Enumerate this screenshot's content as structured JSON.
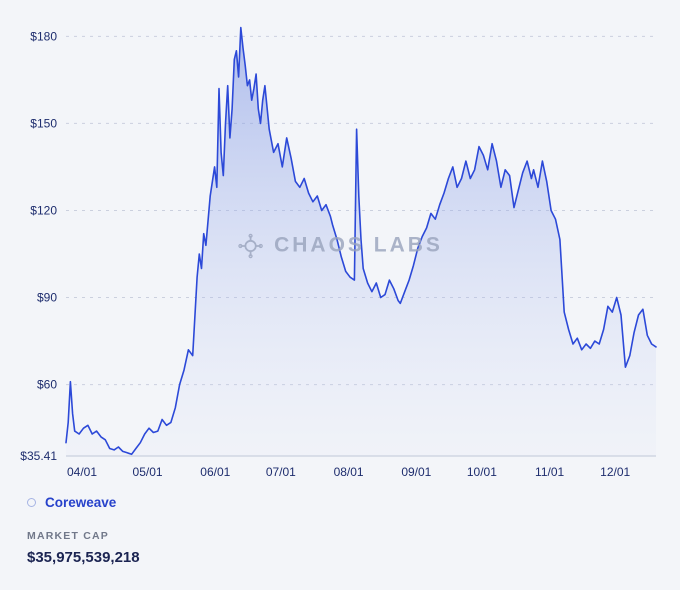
{
  "watermark": {
    "text": "CHAOS LABS"
  },
  "legend": {
    "series_name": "Coreweave"
  },
  "stats": {
    "market_cap_label": "MARKET CAP",
    "market_cap_value": "$35,975,539,218"
  },
  "chart_data": {
    "type": "area",
    "title": "",
    "xlabel": "",
    "ylabel": "",
    "ylim": [
      35.41,
      187
    ],
    "x_total_days": 270,
    "grid": "dashed-horizontal",
    "legend_position": "bottom-left",
    "baseline_label": "$35.41",
    "y_ticks": [
      {
        "label": "$180",
        "value": 180
      },
      {
        "label": "$150",
        "value": 150
      },
      {
        "label": "$120",
        "value": 120
      },
      {
        "label": "$90",
        "value": 90
      },
      {
        "label": "$60",
        "value": 60
      }
    ],
    "x_ticks": [
      {
        "label": "04/01",
        "t": 0
      },
      {
        "label": "05/01",
        "t": 30
      },
      {
        "label": "06/01",
        "t": 61
      },
      {
        "label": "07/01",
        "t": 91
      },
      {
        "label": "08/01",
        "t": 122
      },
      {
        "label": "09/01",
        "t": 153
      },
      {
        "label": "10/01",
        "t": 183
      },
      {
        "label": "11/01",
        "t": 214
      },
      {
        "label": "12/01",
        "t": 244
      }
    ],
    "series": [
      {
        "name": "Coreweave",
        "points": [
          [
            0,
            40
          ],
          [
            1,
            47
          ],
          [
            2,
            61
          ],
          [
            3,
            50
          ],
          [
            4,
            44
          ],
          [
            6,
            43
          ],
          [
            8,
            45
          ],
          [
            10,
            46
          ],
          [
            12,
            43
          ],
          [
            14,
            44
          ],
          [
            16,
            42
          ],
          [
            18,
            41
          ],
          [
            20,
            38
          ],
          [
            22,
            37.5
          ],
          [
            24,
            38.5
          ],
          [
            26,
            37
          ],
          [
            28,
            36.5
          ],
          [
            30,
            36
          ],
          [
            32,
            38
          ],
          [
            34,
            40
          ],
          [
            36,
            43
          ],
          [
            38,
            45
          ],
          [
            40,
            43.5
          ],
          [
            42,
            44
          ],
          [
            44,
            48
          ],
          [
            46,
            46
          ],
          [
            48,
            47
          ],
          [
            50,
            52
          ],
          [
            52,
            60
          ],
          [
            54,
            65
          ],
          [
            56,
            72
          ],
          [
            58,
            70
          ],
          [
            60,
            97
          ],
          [
            61,
            105
          ],
          [
            62,
            100
          ],
          [
            63,
            112
          ],
          [
            64,
            108
          ],
          [
            66,
            125
          ],
          [
            68,
            135
          ],
          [
            69,
            128
          ],
          [
            70,
            162
          ],
          [
            71,
            140
          ],
          [
            72,
            132
          ],
          [
            73,
            150
          ],
          [
            74,
            163
          ],
          [
            75,
            145
          ],
          [
            76,
            155
          ],
          [
            77,
            172
          ],
          [
            78,
            175
          ],
          [
            79,
            166
          ],
          [
            80,
            183
          ],
          [
            81,
            176
          ],
          [
            82,
            170
          ],
          [
            83,
            163
          ],
          [
            84,
            165
          ],
          [
            85,
            158
          ],
          [
            86,
            162
          ],
          [
            87,
            167
          ],
          [
            88,
            155
          ],
          [
            89,
            150
          ],
          [
            90,
            158
          ],
          [
            91,
            163
          ],
          [
            93,
            148
          ],
          [
            95,
            140
          ],
          [
            97,
            143
          ],
          [
            99,
            135
          ],
          [
            101,
            145
          ],
          [
            103,
            138
          ],
          [
            105,
            130
          ],
          [
            107,
            128
          ],
          [
            109,
            131
          ],
          [
            111,
            126
          ],
          [
            113,
            123
          ],
          [
            115,
            125
          ],
          [
            117,
            120
          ],
          [
            119,
            122
          ],
          [
            121,
            118
          ],
          [
            122,
            115
          ],
          [
            124,
            110
          ],
          [
            126,
            104
          ],
          [
            128,
            99
          ],
          [
            130,
            97
          ],
          [
            132,
            96
          ],
          [
            133,
            148
          ],
          [
            134,
            125
          ],
          [
            135,
            110
          ],
          [
            136,
            100
          ],
          [
            138,
            95
          ],
          [
            140,
            92
          ],
          [
            142,
            95
          ],
          [
            144,
            90
          ],
          [
            146,
            91
          ],
          [
            148,
            96
          ],
          [
            150,
            93
          ],
          [
            152,
            89
          ],
          [
            153,
            88
          ],
          [
            155,
            92
          ],
          [
            157,
            96
          ],
          [
            159,
            101
          ],
          [
            161,
            107
          ],
          [
            163,
            111
          ],
          [
            165,
            114
          ],
          [
            167,
            119
          ],
          [
            169,
            117
          ],
          [
            171,
            122
          ],
          [
            173,
            126
          ],
          [
            175,
            131
          ],
          [
            177,
            135
          ],
          [
            179,
            128
          ],
          [
            181,
            131
          ],
          [
            183,
            137
          ],
          [
            185,
            131
          ],
          [
            187,
            134
          ],
          [
            189,
            142
          ],
          [
            191,
            139
          ],
          [
            193,
            134
          ],
          [
            195,
            143
          ],
          [
            197,
            137
          ],
          [
            199,
            128
          ],
          [
            201,
            134
          ],
          [
            203,
            132
          ],
          [
            205,
            121
          ],
          [
            207,
            127
          ],
          [
            209,
            133
          ],
          [
            211,
            137
          ],
          [
            213,
            131
          ],
          [
            214,
            134
          ],
          [
            216,
            128
          ],
          [
            218,
            137
          ],
          [
            220,
            130
          ],
          [
            222,
            120
          ],
          [
            224,
            117
          ],
          [
            226,
            110
          ],
          [
            228,
            85
          ],
          [
            230,
            79
          ],
          [
            232,
            74
          ],
          [
            234,
            76
          ],
          [
            236,
            72
          ],
          [
            238,
            74
          ],
          [
            240,
            72.5
          ],
          [
            242,
            75
          ],
          [
            244,
            74
          ],
          [
            246,
            79
          ],
          [
            248,
            87
          ],
          [
            250,
            85
          ],
          [
            252,
            90
          ],
          [
            254,
            84
          ],
          [
            256,
            66
          ],
          [
            258,
            70
          ],
          [
            260,
            78
          ],
          [
            262,
            84
          ],
          [
            264,
            86
          ],
          [
            266,
            77
          ],
          [
            268,
            74
          ],
          [
            270,
            73
          ]
        ]
      }
    ],
    "colors": {
      "line": "#2c49d8",
      "fill_top": "rgba(111,137,224,0.52)",
      "fill_bottom": "rgba(205,214,244,0.08)",
      "grid": "#cbd0de",
      "axis": "#bfc6d6",
      "tick_text": "#1e2d6e"
    }
  }
}
